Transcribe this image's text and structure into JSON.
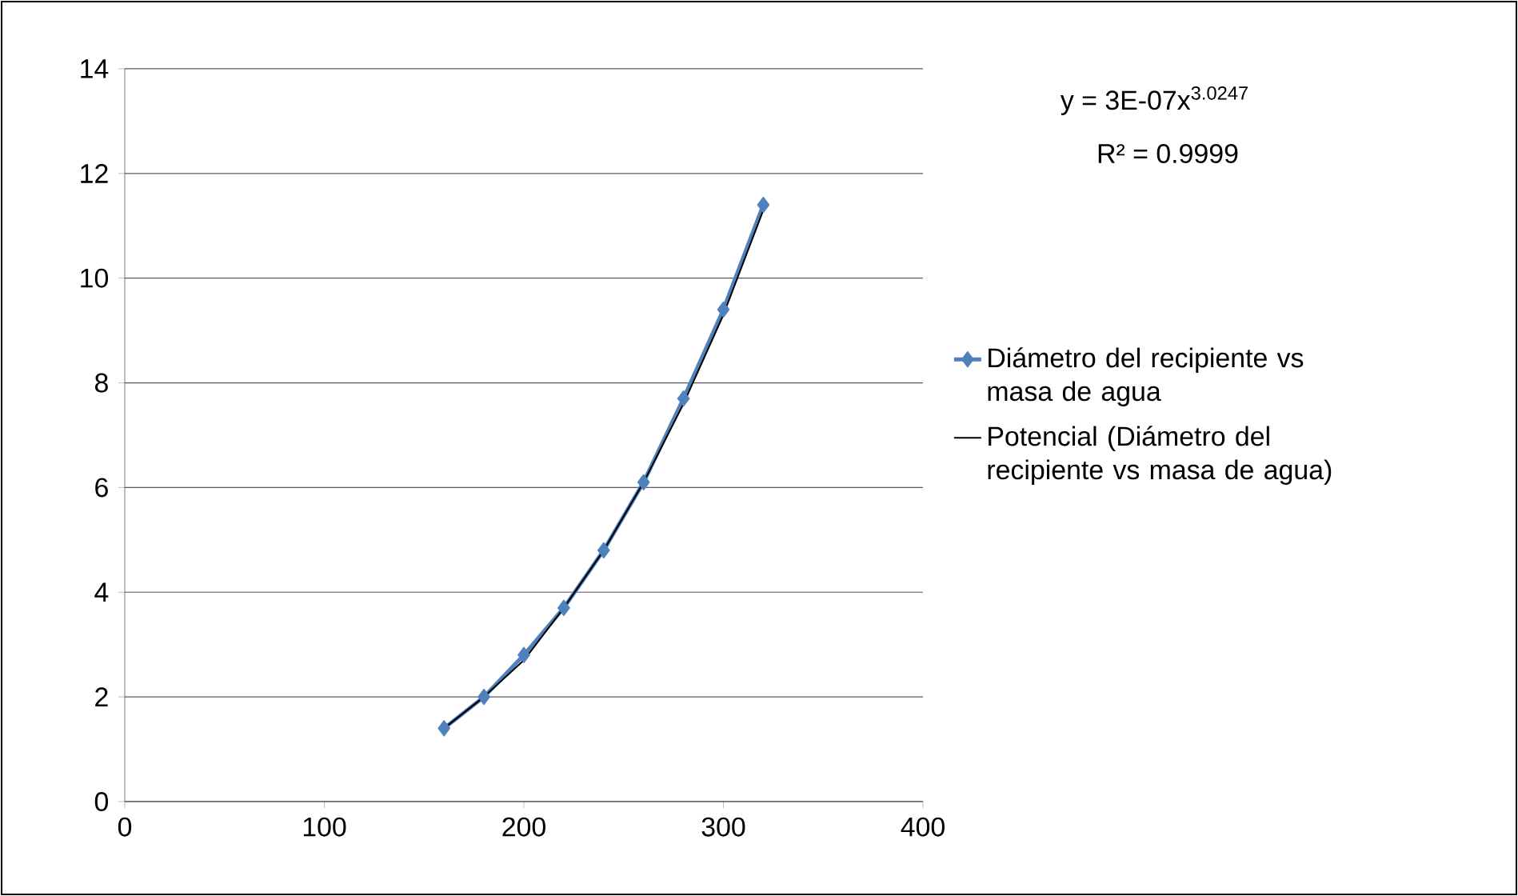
{
  "chart_data": {
    "type": "line",
    "x": [
      160,
      180,
      200,
      220,
      240,
      260,
      280,
      300,
      320
    ],
    "series": [
      {
        "name": "Diámetro del recipiente vs masa de agua",
        "color": "#4f81bd",
        "marker": "diamond",
        "values": [
          1.4,
          2.0,
          2.8,
          3.7,
          4.8,
          6.1,
          7.7,
          9.4,
          11.4
        ]
      },
      {
        "name": "Potencial (Diámetro del recipiente vs masa de agua)",
        "color": "#000000",
        "marker": "none",
        "values": [
          1.4,
          2.0,
          2.7,
          3.7,
          4.8,
          6.1,
          7.6,
          9.3,
          11.3
        ]
      }
    ],
    "xlim": [
      0,
      400
    ],
    "xticks": [
      0,
      100,
      200,
      300,
      400
    ],
    "ylim": [
      0,
      14
    ],
    "yticks": [
      0,
      2,
      4,
      6,
      8,
      10,
      12,
      14
    ],
    "grid": "y",
    "legend": "right",
    "annotations": [
      "y = 3E-07x$^{3.0247}$",
      "R² = 0.9999"
    ]
  }
}
